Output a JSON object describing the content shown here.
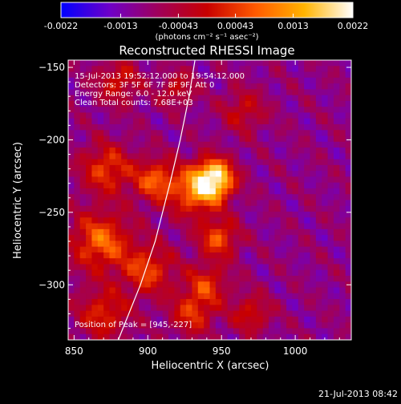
{
  "chart_data": {
    "type": "heatmap",
    "title": "Reconstructed RHESSI Image",
    "xlabel": "Heliocentric X (arcsec)",
    "ylabel": "Heliocentric Y (arcsec)",
    "xlim": [
      846,
      1038
    ],
    "ylim": [
      -338,
      -145
    ],
    "x_ticks": [
      850,
      900,
      950,
      1000
    ],
    "y_ticks": [
      -150,
      -200,
      -250,
      -300
    ],
    "colorbar": {
      "range": [
        -0.0022,
        0.0022
      ],
      "tick_values": [
        -0.0022,
        -0.0013,
        -0.00043,
        0.00043,
        0.0013,
        0.0022
      ],
      "tick_labels": [
        "-0.0022",
        "-0.0013",
        "-0.00043",
        "0.00043",
        "0.0013",
        "0.0022"
      ],
      "unit_label": "(photons cm⁻² s⁻¹ asec⁻²)",
      "colors": [
        "#0000ff",
        "#6e00c8",
        "#a0005a",
        "#c80000",
        "#ff5a00",
        "#ffb400",
        "#ffffff"
      ]
    },
    "annotations": [
      "15-Jul-2013 19:52:12.000 to 19:54:12.000",
      "Detectors: 3F 5F 6F 7F 8F 9F, Att 0",
      "Energy Range: 6.0 - 12.0 keV",
      "Clean     Total counts: 7.68E+03"
    ],
    "peak_label": "Position of Peak = [945,-227]",
    "peak": [
      945,
      -227
    ],
    "limb_curve": [
      [
        880,
        -338
      ],
      [
        895,
        -300
      ],
      [
        905,
        -270
      ],
      [
        915,
        -230
      ],
      [
        922,
        -200
      ],
      [
        928,
        -170
      ],
      [
        932,
        -145
      ]
    ],
    "sources": [
      {
        "x": 945,
        "y": -227,
        "amp": 1.0,
        "sigma": 9
      },
      {
        "x": 932,
        "y": -236,
        "amp": 0.55,
        "sigma": 12
      },
      {
        "x": 948,
        "y": -268,
        "amp": 0.5,
        "sigma": 9
      },
      {
        "x": 905,
        "y": -228,
        "amp": 0.5,
        "sigma": 10
      },
      {
        "x": 872,
        "y": -220,
        "amp": 0.45,
        "sigma": 12
      },
      {
        "x": 868,
        "y": -270,
        "amp": 0.55,
        "sigma": 14
      },
      {
        "x": 900,
        "y": -290,
        "amp": 0.45,
        "sigma": 12
      },
      {
        "x": 940,
        "y": -300,
        "amp": 0.4,
        "sigma": 10
      },
      {
        "x": 930,
        "y": -320,
        "amp": 0.4,
        "sigma": 10
      },
      {
        "x": 870,
        "y": -320,
        "amp": 0.4,
        "sigma": 12
      },
      {
        "x": 970,
        "y": -320,
        "amp": 0.35,
        "sigma": 9
      },
      {
        "x": 880,
        "y": -160,
        "amp": 0.35,
        "sigma": 10
      },
      {
        "x": 920,
        "y": -165,
        "amp": 0.3,
        "sigma": 8
      },
      {
        "x": 965,
        "y": -180,
        "amp": 0.3,
        "sigma": 10
      }
    ]
  },
  "footer": {
    "timestamp": "21-Jul-2013 08:42"
  }
}
